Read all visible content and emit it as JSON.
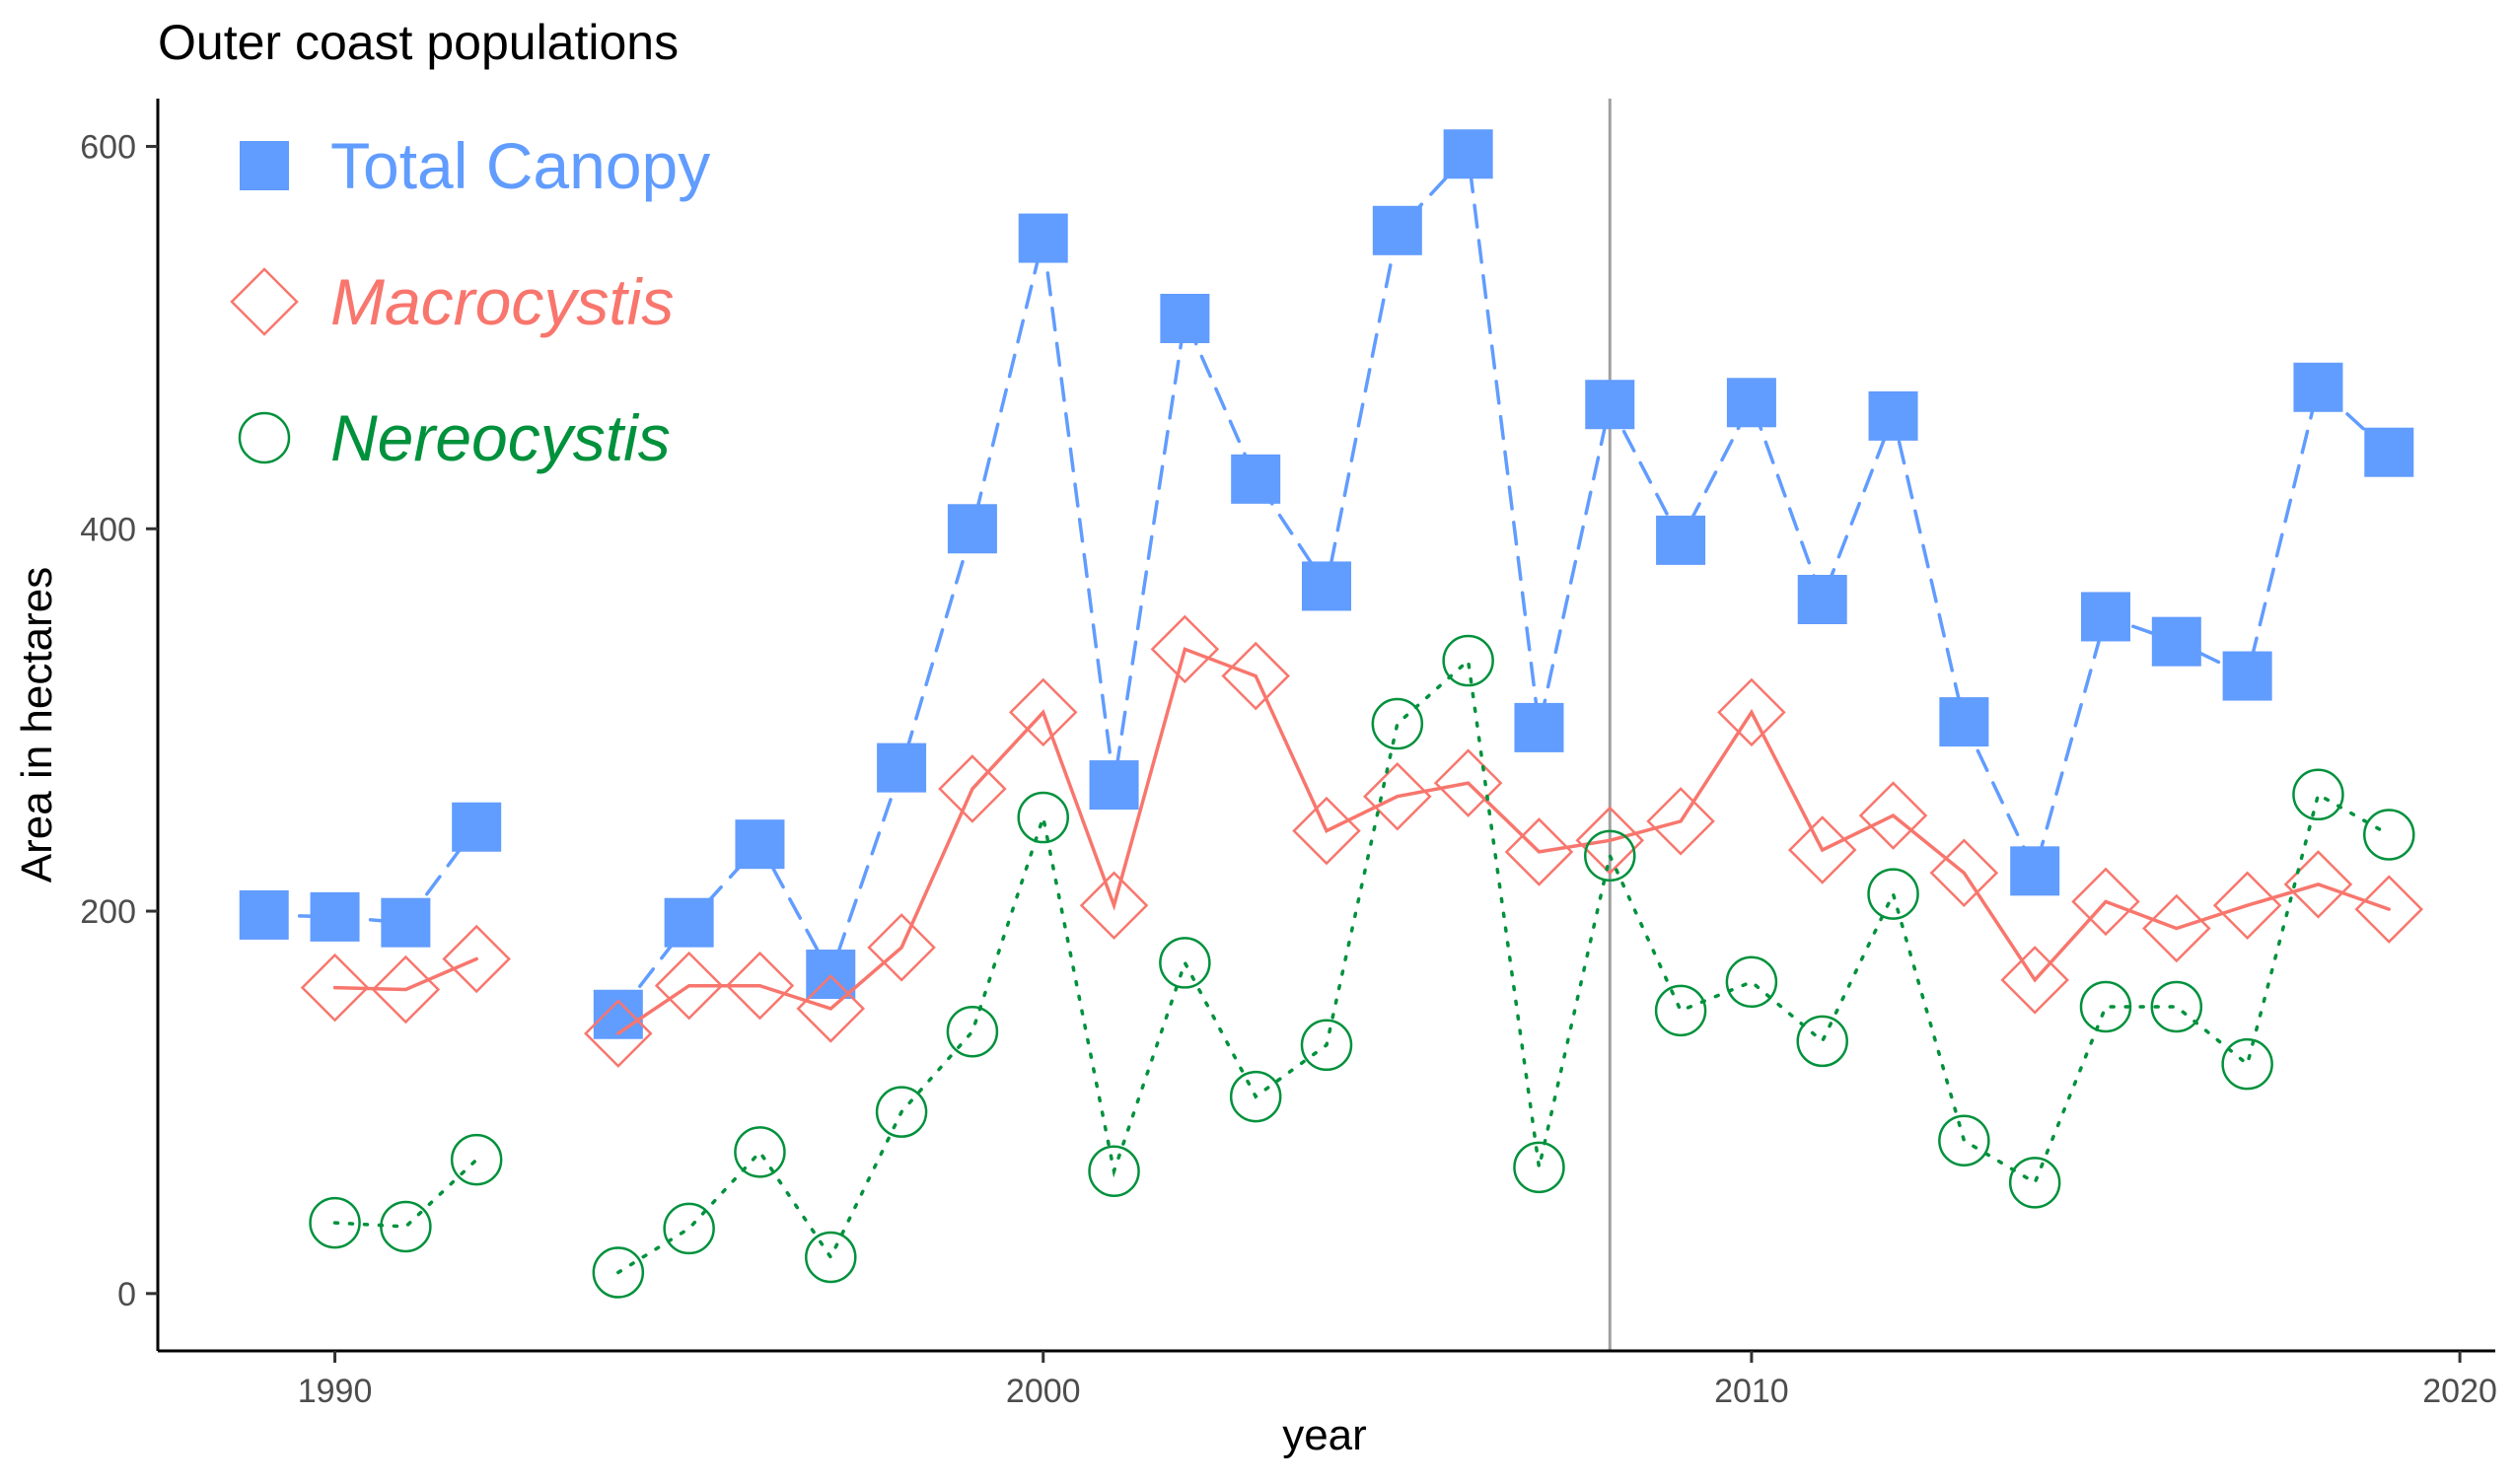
{
  "chart_data": {
    "type": "line",
    "title": "Outer coast populations",
    "xlabel": "year",
    "ylabel": "Area in hectares",
    "xlim": [
      1987.5,
      2020.5
    ],
    "ylim": [
      -30,
      625
    ],
    "x_ticks": [
      1990,
      2000,
      2010,
      2020
    ],
    "y_ticks": [
      0,
      200,
      400,
      600
    ],
    "grid": false,
    "legend_position": "top-left",
    "reference_line": {
      "x": 2008,
      "color": "#A0A0A0"
    },
    "series": [
      {
        "name": "Total Canopy",
        "color": "#619CFF",
        "line_style": "dashed",
        "marker": "filled-square",
        "points": [
          [
            1989,
            198
          ],
          [
            1990,
            197
          ],
          [
            1991,
            194
          ],
          [
            1992,
            244
          ],
          [
            1994,
            146
          ],
          [
            1995,
            194
          ],
          [
            1996,
            235
          ],
          [
            1997,
            167
          ],
          [
            1998,
            275
          ],
          [
            1999,
            400
          ],
          [
            2000,
            552
          ],
          [
            2001,
            266
          ],
          [
            2002,
            510
          ],
          [
            2003,
            426
          ],
          [
            2004,
            370
          ],
          [
            2005,
            556
          ],
          [
            2006,
            596
          ],
          [
            2007,
            296
          ],
          [
            2008,
            465
          ],
          [
            2009,
            394
          ],
          [
            2010,
            466
          ],
          [
            2011,
            363
          ],
          [
            2012,
            459
          ],
          [
            2013,
            299
          ],
          [
            2014,
            221
          ],
          [
            2015,
            354
          ],
          [
            2016,
            341
          ],
          [
            2017,
            323
          ],
          [
            2018,
            474
          ],
          [
            2019,
            440
          ]
        ]
      },
      {
        "name": "Macrocystis",
        "color": "#F8766D",
        "line_style": "solid",
        "marker": "open-diamond",
        "points": [
          [
            1990,
            160
          ],
          [
            1991,
            159
          ],
          [
            1992,
            175
          ],
          [
            1994,
            136
          ],
          [
            1995,
            161
          ],
          [
            1996,
            161
          ],
          [
            1997,
            149
          ],
          [
            1998,
            181
          ],
          [
            1999,
            264
          ],
          [
            2000,
            304
          ],
          [
            2001,
            203
          ],
          [
            2002,
            337
          ],
          [
            2003,
            323
          ],
          [
            2004,
            242
          ],
          [
            2005,
            260
          ],
          [
            2006,
            267
          ],
          [
            2007,
            231
          ],
          [
            2008,
            237
          ],
          [
            2009,
            247
          ],
          [
            2010,
            304
          ],
          [
            2011,
            232
          ],
          [
            2012,
            250
          ],
          [
            2013,
            220
          ],
          [
            2014,
            164
          ],
          [
            2015,
            205
          ],
          [
            2016,
            191
          ],
          [
            2017,
            203
          ],
          [
            2018,
            214
          ],
          [
            2019,
            201
          ]
        ]
      },
      {
        "name": "Nereocystis",
        "color": "#00913C",
        "line_style": "dotted",
        "marker": "open-circle",
        "points": [
          [
            1990,
            37
          ],
          [
            1991,
            35
          ],
          [
            1992,
            70
          ],
          [
            1994,
            11
          ],
          [
            1995,
            34
          ],
          [
            1996,
            74
          ],
          [
            1997,
            19
          ],
          [
            1998,
            95
          ],
          [
            1999,
            137
          ],
          [
            2000,
            249
          ],
          [
            2001,
            64
          ],
          [
            2002,
            173
          ],
          [
            2003,
            103
          ],
          [
            2004,
            130
          ],
          [
            2005,
            298
          ],
          [
            2006,
            331
          ],
          [
            2007,
            66
          ],
          [
            2008,
            229
          ],
          [
            2009,
            148
          ],
          [
            2010,
            163
          ],
          [
            2011,
            132
          ],
          [
            2012,
            209
          ],
          [
            2013,
            80
          ],
          [
            2014,
            58
          ],
          [
            2015,
            150
          ],
          [
            2016,
            150
          ],
          [
            2017,
            120
          ],
          [
            2018,
            261
          ],
          [
            2019,
            240
          ]
        ]
      }
    ]
  }
}
